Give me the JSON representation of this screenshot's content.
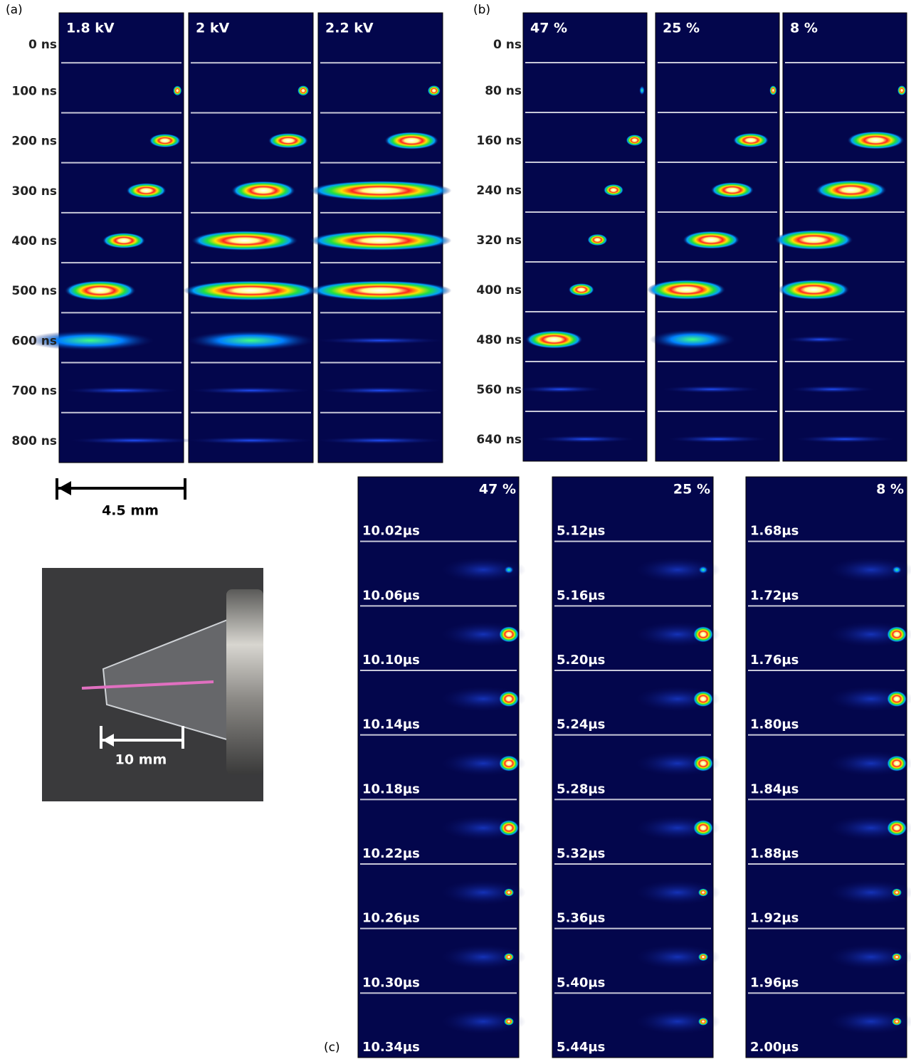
{
  "panel_a": {
    "label": "(a)",
    "columns": [
      {
        "header": "1.8 kV"
      },
      {
        "header": "2 kV"
      },
      {
        "header": "2.2 kV"
      }
    ],
    "times": [
      "0 ns",
      "100 ns",
      "200 ns",
      "300 ns",
      "400 ns",
      "500 ns",
      "600 ns",
      "700 ns",
      "800 ns"
    ],
    "scale_bar": "4.5 mm"
  },
  "panel_b": {
    "label": "(b)",
    "columns": [
      {
        "header": "47 %"
      },
      {
        "header": "25 %"
      },
      {
        "header": "8 %"
      }
    ],
    "times": [
      "0 ns",
      "80 ns",
      "160 ns",
      "240 ns",
      "320 ns",
      "400 ns",
      "480 ns",
      "560 ns",
      "640 ns"
    ]
  },
  "panel_c": {
    "label": "(c)",
    "columns": [
      {
        "header": "47 %",
        "times": [
          "10.02µs",
          "10.06µs",
          "10.10µs",
          "10.14µs",
          "10.18µs",
          "10.22µs",
          "10.26µs",
          "10.30µs",
          "10.34µs"
        ]
      },
      {
        "header": "25 %",
        "times": [
          "5.12µs",
          "5.16µs",
          "5.20µs",
          "5.24µs",
          "5.28µs",
          "5.32µs",
          "5.36µs",
          "5.40µs",
          "5.44µs"
        ]
      },
      {
        "header": "8 %",
        "times": [
          "1.68µs",
          "1.72µs",
          "1.76µs",
          "1.80µs",
          "1.84µs",
          "1.88µs",
          "1.92µs",
          "1.96µs",
          "2.00µs"
        ]
      }
    ]
  },
  "photo": {
    "scale_bar": "10 mm"
  }
}
